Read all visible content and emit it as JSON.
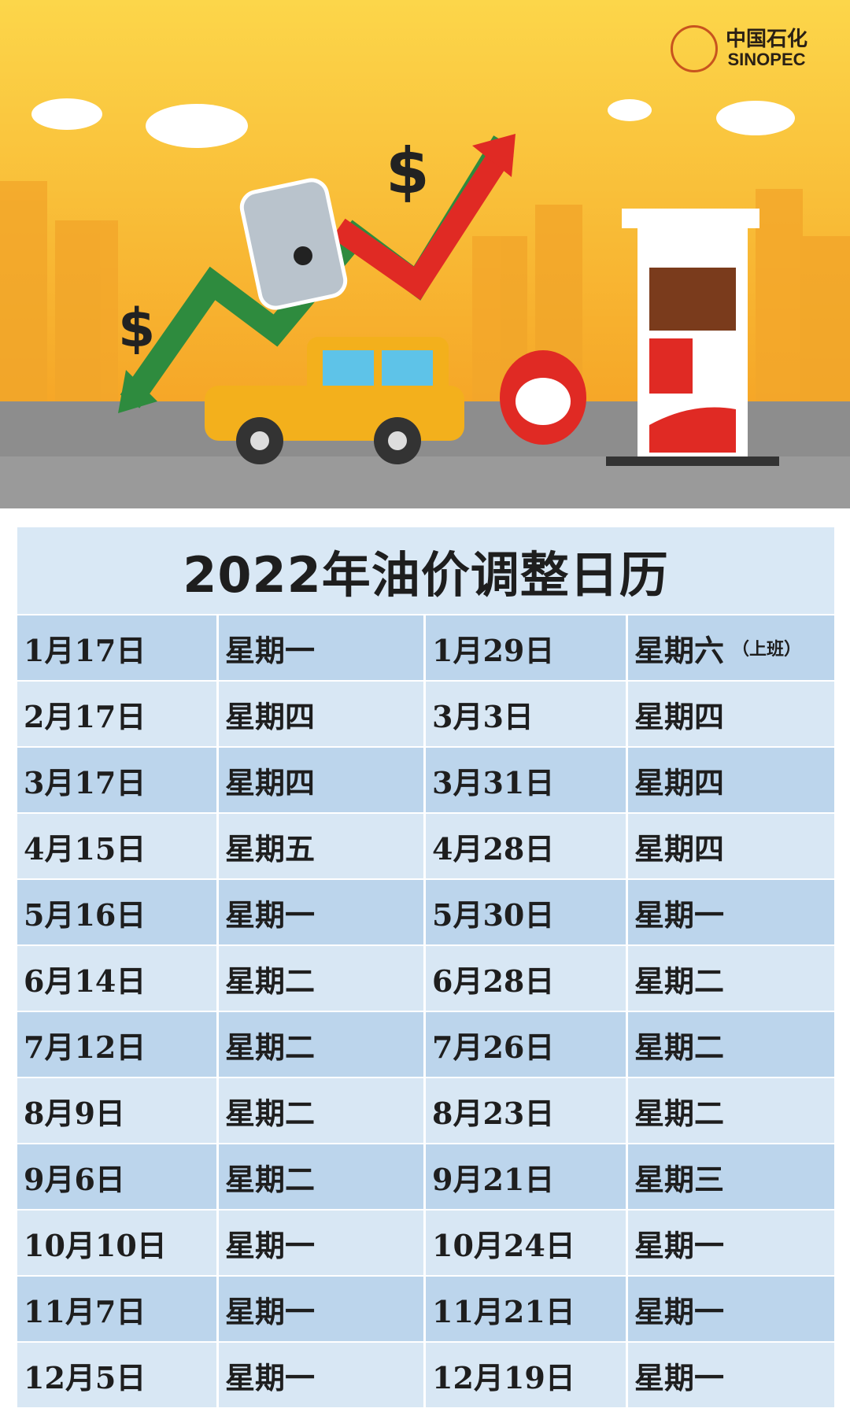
{
  "brand": {
    "cn": "中国石化",
    "en": "SINOPEC",
    "mark_text": "SINOPEC"
  },
  "banner": {
    "dollar_sign": "$",
    "colors": {
      "sky": "#f7b32b",
      "road": "#8a8a8a",
      "up_arrow": "#e02a24",
      "down_arrow": "#2e8b3e",
      "car": "#f3b01c"
    }
  },
  "title": "2022年油价调整日历",
  "rows": [
    {
      "d1": "1月17日",
      "w1": "星期一",
      "d2": "1月29日",
      "w2": "星期六",
      "note": "（上班）"
    },
    {
      "d1": "2月17日",
      "w1": "星期四",
      "d2": "3月3日",
      "w2": "星期四"
    },
    {
      "d1": "3月17日",
      "w1": "星期四",
      "d2": "3月31日",
      "w2": "星期四"
    },
    {
      "d1": "4月15日",
      "w1": "星期五",
      "d2": "4月28日",
      "w2": "星期四"
    },
    {
      "d1": "5月16日",
      "w1": "星期一",
      "d2": "5月30日",
      "w2": "星期一"
    },
    {
      "d1": "6月14日",
      "w1": "星期二",
      "d2": "6月28日",
      "w2": "星期二"
    },
    {
      "d1": "7月12日",
      "w1": "星期二",
      "d2": "7月26日",
      "w2": "星期二"
    },
    {
      "d1": "8月9日",
      "w1": "星期二",
      "d2": "8月23日",
      "w2": "星期二"
    },
    {
      "d1": "9月6日",
      "w1": "星期二",
      "d2": "9月21日",
      "w2": "星期三"
    },
    {
      "d1": "10月10日",
      "w1": "星期一",
      "d2": "10月24日",
      "w2": "星期一"
    },
    {
      "d1": "11月7日",
      "w1": "星期一",
      "d2": "11月21日",
      "w2": "星期一"
    },
    {
      "d1": "12月5日",
      "w1": "星期一",
      "d2": "12月19日",
      "w2": "星期一"
    }
  ]
}
